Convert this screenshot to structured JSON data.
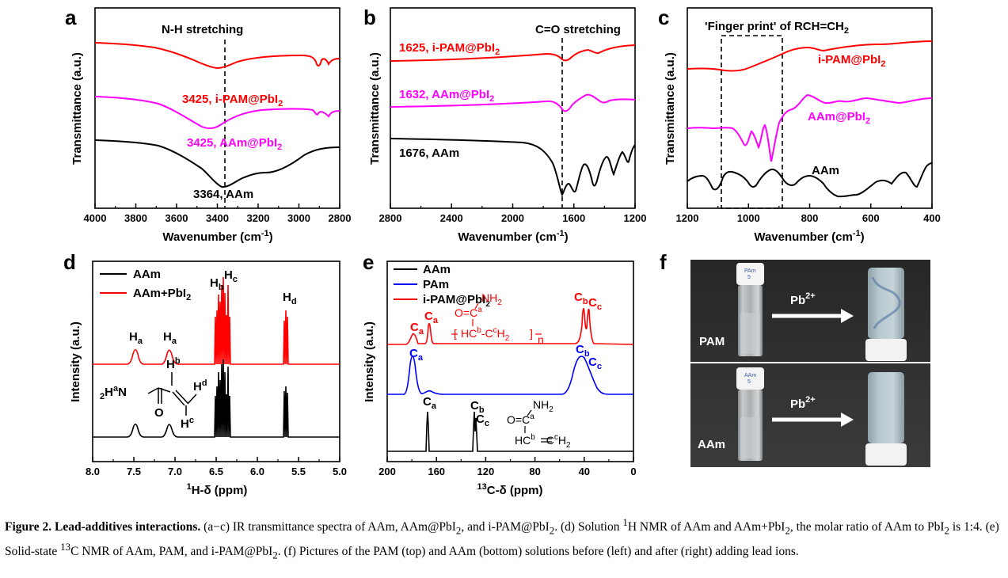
{
  "panels": {
    "a": {
      "label": "a",
      "top_annotation": "N-H stretching",
      "ylabel": "Transmittance (a.u.)",
      "xlabel": "Wavenumber (cm",
      "xlabel_sup": "-1",
      "xlabel_end": ")",
      "ticks": [
        "4000",
        "3800",
        "3600",
        "3400",
        "3200",
        "3000",
        "2800"
      ],
      "series": [
        {
          "label": "3425, i-PAM@PbI",
          "sub": "2",
          "color": "#ff0000"
        },
        {
          "label": "3425, AAm@PbI",
          "sub": "2",
          "color": "#ff00ff"
        },
        {
          "label": "3364, AAm",
          "sub": "",
          "color": "#000000"
        }
      ]
    },
    "b": {
      "label": "b",
      "top_annotation": "C=O stretching",
      "ylabel": "Transmittance (a.u.)",
      "xlabel": "Wavenumber (cm",
      "xlabel_sup": "-1",
      "xlabel_end": ")",
      "ticks": [
        "2800",
        "2400",
        "2000",
        "1600",
        "1200"
      ],
      "series": [
        {
          "label": "1625, i-PAM@PbI",
          "sub": "2",
          "color": "#ff0000"
        },
        {
          "label": "1632, AAm@PbI",
          "sub": "2",
          "color": "#ff00ff"
        },
        {
          "label": "1676, AAm",
          "sub": "",
          "color": "#000000"
        }
      ]
    },
    "c": {
      "label": "c",
      "top_annotation": "'Finger print' of RCH=CH",
      "top_annotation_sub": "2",
      "ylabel": "Transmittance (a.u.)",
      "xlabel": "Wavenumber (cm",
      "xlabel_sup": "-1",
      "xlabel_end": ")",
      "ticks": [
        "1200",
        "1000",
        "800",
        "600",
        "400"
      ],
      "series": [
        {
          "label": "i-PAM@PbI",
          "sub": "2",
          "color": "#ff0000"
        },
        {
          "label": "AAm@PbI",
          "sub": "2",
          "color": "#ff00ff"
        },
        {
          "label": "AAm",
          "sub": "",
          "color": "#000000"
        }
      ]
    },
    "d": {
      "label": "d",
      "ylabel": "Intensity (a.u.)",
      "xlabel_sup": "1",
      "xlabel": "H-δ (ppm)",
      "ticks": [
        "8.0",
        "7.5",
        "7.0",
        "6.5",
        "6.0",
        "5.5",
        "5.0"
      ],
      "legend": [
        {
          "label": "AAm",
          "sub": "",
          "color": "#000000"
        },
        {
          "label": "AAm+PbI",
          "sub": "2",
          "color": "#ff0000"
        }
      ],
      "peak_labels": [
        "H",
        "a",
        "H",
        "a",
        "H",
        "b",
        "H",
        "c",
        "H",
        "d"
      ],
      "structure": [
        "H",
        "b",
        "H",
        "d",
        "2",
        "H",
        "a",
        "N",
        "O",
        "H",
        "c"
      ]
    },
    "e": {
      "label": "e",
      "ylabel": "Intensity (a.u.)",
      "xlabel_sup": "13",
      "xlabel": "C-δ (ppm)",
      "ticks": [
        "200",
        "160",
        "120",
        "80",
        "40",
        "0"
      ],
      "legend": [
        {
          "label": "AAm",
          "sub": "",
          "color": "#000000"
        },
        {
          "label": "PAm",
          "sub": "",
          "color": "#0000ff"
        },
        {
          "label": "i-PAM@PbI",
          "sub": "2",
          "color": "#ff0000"
        }
      ],
      "peak_letter": "C",
      "peak_subs": [
        "a",
        "a",
        "b",
        "c",
        "a",
        "b",
        "c",
        "a",
        "b",
        "c"
      ],
      "structure_red": [
        "NH",
        "2",
        "O=C",
        "a",
        "HC",
        "b",
        "-C",
        "c",
        "H",
        "2",
        "n"
      ],
      "structure_black": [
        "NH",
        "2",
        "O=C",
        "a",
        "HC",
        "b",
        "C",
        "c",
        "H",
        "2"
      ]
    },
    "f": {
      "label": "f",
      "rows": [
        {
          "label": "PAM",
          "arrow": "Pb",
          "arrow_sup": "2+",
          "cap_text": "PAm"
        },
        {
          "label": "AAm",
          "arrow": "Pb",
          "arrow_sup": "2+",
          "cap_text": "AAm"
        }
      ],
      "cap_sub": "5"
    }
  },
  "caption": {
    "figure": "Figure 2.",
    "title": "Lead-additives interactions.",
    "text_1": "(a−c) IR transmittance spectra of AAm, AAm@PbI",
    "sub_1": "2",
    "text_2": ", and i-PAM@PbI",
    "sub_2": "2",
    "text_3": ". (d) Solution",
    "sup_1": "1",
    "text_4": "H NMR of AAm and AAm+PbI",
    "sub_3": "2",
    "text_5": ", the molar ratio of AAm to PbI",
    "sub_4": "2",
    "text_6": "is 1:4. (e) Solid-state",
    "sup_2": "13",
    "text_7": "C NMR of AAm, PAM, and i-PAM@PbI",
    "sub_5": "2",
    "text_8": ". (f) Pictures of the PAM (top) and AAm (bottom) solutions before (left) and after (right) adding lead ions."
  },
  "colors": {
    "red": "#ff0000",
    "magenta": "#ff00ff",
    "black": "#000000",
    "blue": "#0000ff",
    "photo_bg": "#2c2c2c"
  }
}
